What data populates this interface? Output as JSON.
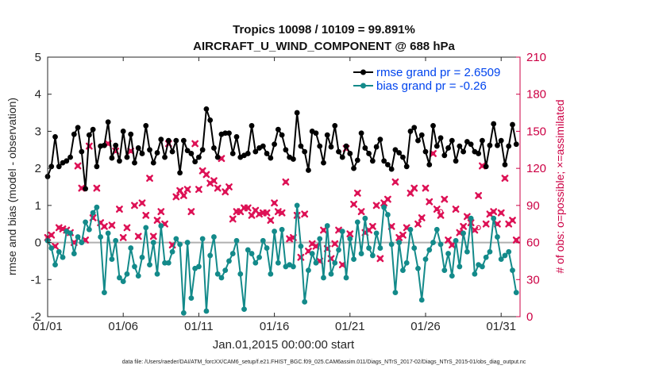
{
  "chart_data": {
    "type": "line",
    "title_line1": "Tropics 10098 / 10109 = 99.891%",
    "title_line2": "AIRCRAFT_U_WIND_COMPONENT @ 688 hPa",
    "xlabel": "Jan.01,2015 00:00:00 start",
    "ylabel": "rmse and bias (model - observation)",
    "ylabel_right": "# of obs: o=possible; ×=assimilated",
    "xlim": [
      0,
      31.25
    ],
    "ylim": [
      -2,
      5
    ],
    "ylim_right": [
      0,
      210
    ],
    "xticks": [
      0,
      5,
      10,
      15,
      20,
      25,
      30
    ],
    "xtick_labels": [
      "01/01",
      "01/06",
      "01/11",
      "01/16",
      "01/21",
      "01/26",
      "01/31"
    ],
    "yticks": [
      -2,
      -1,
      0,
      1,
      2,
      3,
      4,
      5
    ],
    "ytick_labels": [
      "-2",
      "-1",
      "0",
      "1",
      "2",
      "3",
      "4",
      "5"
    ],
    "yticks_right": [
      0,
      30,
      60,
      90,
      120,
      150,
      180,
      210
    ],
    "ytick_labels_right": [
      "0",
      "30",
      "60",
      "90",
      "120",
      "150",
      "180",
      "210"
    ],
    "colors": {
      "rmse": "#000000",
      "bias": "#138a8a",
      "obs": "#dd1155",
      "zero_line": "#b0b0b0",
      "right_axis": "#cc0044",
      "legend_text": "#0044ee"
    },
    "legend": {
      "placement": "top-right",
      "entries": [
        "rmse grand pr = 2.6509",
        "bias grand pr = -0.26"
      ]
    },
    "series": [
      {
        "name": "rmse",
        "x": [
          0.0,
          0.25,
          0.5,
          0.75,
          1.0,
          1.25,
          1.5,
          1.75,
          2.0,
          2.25,
          2.5,
          2.75,
          3.0,
          3.25,
          3.5,
          3.75,
          4.0,
          4.25,
          4.5,
          4.75,
          5.0,
          5.25,
          5.5,
          5.75,
          6.0,
          6.25,
          6.5,
          6.75,
          7.0,
          7.25,
          7.5,
          7.75,
          8.0,
          8.25,
          8.5,
          8.75,
          9.0,
          9.25,
          9.5,
          9.75,
          10.0,
          10.25,
          10.5,
          10.75,
          11.0,
          11.25,
          11.5,
          11.75,
          12.0,
          12.25,
          12.5,
          12.75,
          13.0,
          13.25,
          13.5,
          13.75,
          14.0,
          14.25,
          14.5,
          14.75,
          15.0,
          15.25,
          15.5,
          15.75,
          16.0,
          16.25,
          16.5,
          16.75,
          17.0,
          17.25,
          17.5,
          17.75,
          18.0,
          18.25,
          18.5,
          18.75,
          19.0,
          19.25,
          19.5,
          19.75,
          20.0,
          20.25,
          20.5,
          20.75,
          21.0,
          21.25,
          21.5,
          21.75,
          22.0,
          22.25,
          22.5,
          22.75,
          23.0,
          23.25,
          23.5,
          23.75,
          24.0,
          24.25,
          24.5,
          24.75,
          25.0,
          25.25,
          25.5,
          25.75,
          26.0,
          26.25,
          26.5,
          26.75,
          27.0,
          27.25,
          27.5,
          27.75,
          28.0,
          28.25,
          28.5,
          28.75,
          29.0,
          29.25,
          29.5,
          29.75,
          30.0,
          30.25,
          30.5,
          30.75,
          31.0
        ],
        "values": [
          1.78,
          2.05,
          2.85,
          2.05,
          2.15,
          2.2,
          2.3,
          2.92,
          3.1,
          2.45,
          1.45,
          2.9,
          3.05,
          2.05,
          2.6,
          2.62,
          3.25,
          2.28,
          2.62,
          2.2,
          3.0,
          2.3,
          2.92,
          2.15,
          2.55,
          2.4,
          3.15,
          2.5,
          2.15,
          2.42,
          2.78,
          2.3,
          2.75,
          2.45,
          2.75,
          1.88,
          2.75,
          2.48,
          2.4,
          2.18,
          2.3,
          2.5,
          3.6,
          3.3,
          2.55,
          2.3,
          2.92,
          2.95,
          2.95,
          2.4,
          2.85,
          2.3,
          2.35,
          2.4,
          3.15,
          2.45,
          2.55,
          2.6,
          2.4,
          2.28,
          2.65,
          3.05,
          2.9,
          2.5,
          2.3,
          2.25,
          3.5,
          2.6,
          2.45,
          1.95,
          3.0,
          2.95,
          2.6,
          2.15,
          2.9,
          2.58,
          3.15,
          2.45,
          2.3,
          2.6,
          2.4,
          2.0,
          2.22,
          2.95,
          2.55,
          2.4,
          2.2,
          2.58,
          2.78,
          2.2,
          2.1,
          1.98,
          2.5,
          2.42,
          2.3,
          2.05,
          3.0,
          3.1,
          2.75,
          2.9,
          2.45,
          2.1,
          3.15,
          2.6,
          2.82,
          2.35,
          2.55,
          2.75,
          2.2,
          2.6,
          2.45,
          2.72,
          2.65,
          2.45,
          2.4,
          2.75,
          2.05,
          2.62,
          3.2,
          2.62,
          2.75,
          2.1,
          2.6,
          3.18,
          2.65
        ]
      },
      {
        "name": "bias",
        "x": [
          0.0,
          0.25,
          0.5,
          0.75,
          1.0,
          1.25,
          1.5,
          1.75,
          2.0,
          2.25,
          2.5,
          2.75,
          3.0,
          3.25,
          3.5,
          3.75,
          4.0,
          4.25,
          4.5,
          4.75,
          5.0,
          5.25,
          5.5,
          5.75,
          6.0,
          6.25,
          6.5,
          6.75,
          7.0,
          7.25,
          7.5,
          7.75,
          8.0,
          8.25,
          8.5,
          8.75,
          9.0,
          9.25,
          9.5,
          9.75,
          10.0,
          10.25,
          10.5,
          10.75,
          11.0,
          11.25,
          11.5,
          11.75,
          12.0,
          12.25,
          12.5,
          12.75,
          13.0,
          13.25,
          13.5,
          13.75,
          14.0,
          14.25,
          14.5,
          14.75,
          15.0,
          15.25,
          15.5,
          15.75,
          16.0,
          16.25,
          16.5,
          16.75,
          17.0,
          17.25,
          17.5,
          17.75,
          18.0,
          18.25,
          18.5,
          18.75,
          19.0,
          19.25,
          19.5,
          19.75,
          20.0,
          20.25,
          20.5,
          20.75,
          21.0,
          21.25,
          21.5,
          21.75,
          22.0,
          22.25,
          22.5,
          22.75,
          23.0,
          23.25,
          23.5,
          23.75,
          24.0,
          24.25,
          24.5,
          24.75,
          25.0,
          25.25,
          25.5,
          25.75,
          26.0,
          26.25,
          26.5,
          26.75,
          27.0,
          27.25,
          27.5,
          27.75,
          28.0,
          28.25,
          28.5,
          28.75,
          29.0,
          29.25,
          29.5,
          29.75,
          30.0,
          30.25,
          30.5,
          30.75,
          31.0
        ],
        "values": [
          0.05,
          -0.15,
          -0.6,
          -0.25,
          -0.4,
          0.3,
          0.25,
          -0.3,
          0.15,
          0.0,
          0.55,
          0.35,
          0.8,
          0.95,
          0.15,
          -1.35,
          0.25,
          -0.45,
          0.05,
          -0.95,
          -1.05,
          -0.85,
          -0.15,
          -0.65,
          -0.9,
          -0.4,
          0.4,
          -0.6,
          0.0,
          -0.85,
          0.45,
          -0.55,
          -0.55,
          -0.25,
          0.1,
          -0.05,
          -1.9,
          0.0,
          -1.5,
          -0.7,
          -0.65,
          0.1,
          -1.85,
          -0.35,
          0.15,
          -0.85,
          -0.95,
          -0.75,
          -0.5,
          -0.3,
          0.05,
          -0.85,
          -1.8,
          -0.2,
          -0.3,
          -0.55,
          -0.4,
          0.05,
          -0.15,
          -0.85,
          0.3,
          -0.55,
          0.35,
          -0.65,
          -0.6,
          -0.65,
          1.0,
          -0.1,
          -1.6,
          -0.75,
          -0.3,
          -0.55,
          0.1,
          -0.95,
          0.45,
          -0.85,
          -0.55,
          -0.2,
          0.3,
          -0.95,
          0.1,
          -0.45,
          0.55,
          -0.3,
          0.65,
          -0.15,
          -0.35,
          0.25,
          -0.15,
          0.95,
          0.75,
          -0.05,
          -1.35,
          0.0,
          -0.75,
          -0.55,
          0.35,
          -0.15,
          -0.7,
          -1.55,
          -0.45,
          -0.2,
          0.0,
          0.35,
          -0.05,
          -0.75,
          -0.3,
          -0.9,
          0.05,
          -0.65,
          0.25,
          -0.25,
          0.65,
          -0.85,
          -0.6,
          -0.65,
          -0.4,
          -0.25,
          0.65,
          0.15,
          -0.45,
          -0.35,
          -0.25,
          -0.75,
          -1.35
        ]
      }
    ],
    "obs_assimilated": {
      "name": "# of obs assimilated",
      "x": [
        0.0,
        0.25,
        0.5,
        0.75,
        1.0,
        1.25,
        1.5,
        1.75,
        2.0,
        2.25,
        2.5,
        2.75,
        3.0,
        3.25,
        3.5,
        3.75,
        4.0,
        4.25,
        4.5,
        4.75,
        5.0,
        5.25,
        5.5,
        5.75,
        6.0,
        6.25,
        6.5,
        6.75,
        7.0,
        7.25,
        7.5,
        7.75,
        8.0,
        8.25,
        8.5,
        8.75,
        9.0,
        9.25,
        9.5,
        9.75,
        10.0,
        10.25,
        10.5,
        10.75,
        11.0,
        11.25,
        11.5,
        11.75,
        12.0,
        12.25,
        12.5,
        12.75,
        13.0,
        13.25,
        13.5,
        13.75,
        14.0,
        14.25,
        14.5,
        14.75,
        15.0,
        15.25,
        15.5,
        15.75,
        16.0,
        16.25,
        16.5,
        16.75,
        17.0,
        17.25,
        17.5,
        17.75,
        18.0,
        18.25,
        18.5,
        18.75,
        19.0,
        19.25,
        19.5,
        19.75,
        20.0,
        20.25,
        20.5,
        20.75,
        21.0,
        21.25,
        21.5,
        21.75,
        22.0,
        22.25,
        22.5,
        22.75,
        23.0,
        23.25,
        23.5,
        23.75,
        24.0,
        24.25,
        24.5,
        24.75,
        25.0,
        25.25,
        25.5,
        25.75,
        26.0,
        26.25,
        26.5,
        26.75,
        27.0,
        27.25,
        27.5,
        27.75,
        28.0,
        28.25,
        28.5,
        28.75,
        29.0,
        29.25,
        29.5,
        29.75,
        30.0,
        30.25,
        30.5,
        30.75,
        31.0
      ],
      "values": [
        64,
        66,
        57,
        72,
        71,
        70,
        68,
        60,
        122,
        104,
        62,
        138,
        80,
        104,
        76,
        73,
        140,
        74,
        134,
        87,
        64,
        72,
        134,
        90,
        65,
        92,
        82,
        112,
        65,
        78,
        85,
        75,
        140,
        58,
        97,
        102,
        98,
        103,
        85,
        140,
        103,
        118,
        115,
        108,
        110,
        104,
        128,
        101,
        105,
        79,
        85,
        85,
        88,
        88,
        82,
        86,
        83,
        84,
        84,
        78,
        92,
        85,
        84,
        109,
        63,
        64,
        82,
        48,
        83,
        53,
        59,
        57,
        45,
        70,
        55,
        47,
        59,
        70,
        42,
        136,
        67,
        91,
        100,
        85,
        68,
        70,
        73,
        90,
        47,
        92,
        95,
        73,
        109,
        64,
        66,
        72,
        100,
        104,
        75,
        80,
        104,
        93,
        132,
        87,
        82,
        95,
        62,
        58,
        87,
        68,
        73,
        81,
        76,
        70,
        98,
        122,
        75,
        83,
        85,
        75,
        84,
        112,
        75,
        78,
        62
      ]
    },
    "obs_possible": {
      "name": "# of obs possible (distinct from assimilated)",
      "x": [
        26.0,
        28.5
      ],
      "values": [
        85,
        72
      ]
    }
  },
  "footnote": "data file: /Users/raeder/DAI/ATM_forcXX/CAM6_setup/f.e21.FHIST_BGC.f09_025.CAM6assim.011/Diags_NTrS_2017-02/Diags_NTrS_2015-01/obs_diag_output.nc"
}
